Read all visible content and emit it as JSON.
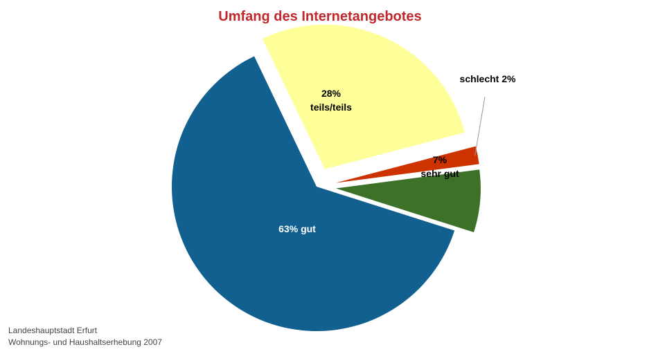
{
  "chart_data": {
    "type": "pie",
    "title": "Umfang des Internetangebotes",
    "slices": [
      {
        "name": "sehr gut",
        "value": 7,
        "color": "#3e7128",
        "label_lines": [
          "7%",
          "sehr gut"
        ],
        "label_color": "#000000",
        "exploded": true
      },
      {
        "name": "gut",
        "value": 63,
        "color": "#11608f",
        "label_lines": [
          "63% gut"
        ],
        "label_color": "#ffffff",
        "exploded": false
      },
      {
        "name": "teils/teils",
        "value": 28,
        "color": "#ffff99",
        "label_lines": [
          "28%",
          "teils/teils"
        ],
        "label_color": "#000000",
        "exploded": true
      },
      {
        "name": "schlecht",
        "value": 2,
        "color": "#cc3300",
        "label_lines": [
          "schlecht 2%"
        ],
        "label_color": "#000000",
        "exploded": true
      }
    ]
  },
  "footer": {
    "line1": "Landeshauptstadt Erfurt",
    "line2": "Wohnungs- und Haushaltserhebung 2007"
  }
}
